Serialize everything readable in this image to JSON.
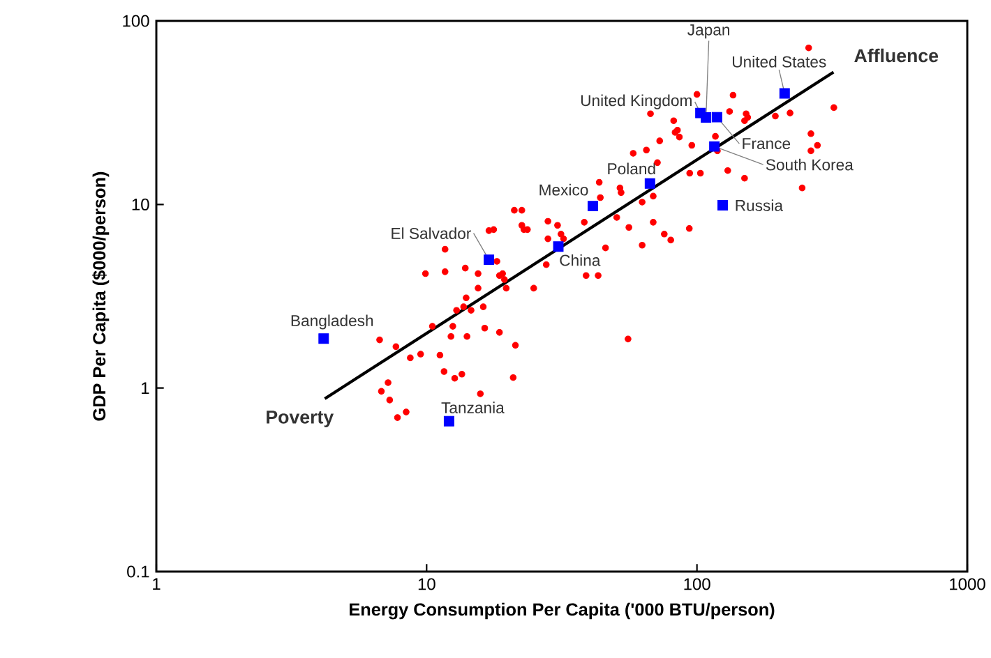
{
  "chart_data": {
    "type": "scatter",
    "xlabel": "Energy Consumption Per Capita ('000 BTU/person)",
    "ylabel": "GDP Per Capita ($000/person)",
    "log": "xy",
    "xlim": [
      1,
      1000
    ],
    "ylim": [
      0.1,
      100
    ],
    "xticks": [
      1,
      10,
      100,
      1000
    ],
    "yticks": [
      0.1,
      1,
      10,
      100
    ],
    "series": [
      {
        "color": "#ff0000",
        "marker": "circle",
        "x": [
          21.1,
          22.5,
          17.0,
          17.7,
          22.5,
          22.9,
          23.6,
          28.1,
          30.5,
          38.3,
          31.4,
          32.1,
          28.1,
          11.7,
          9.9,
          11.7,
          13.9,
          15.5,
          18.2,
          18.6,
          19.1,
          19.4,
          15.5,
          19.7,
          24.9,
          27.7,
          38.9,
          14.0,
          259,
          100,
          136,
          321,
          67.3,
          132,
          152,
          150,
          154,
          195,
          221,
          82.0,
          84.7,
          83.0,
          86.1,
          72.8,
          95.7,
          117,
          119,
          264,
          279,
          264,
          58.1,
          65.0,
          71.4,
          51.9,
          52.4,
          43.5,
          43.9,
          94.0,
          103,
          130,
          150,
          62.7,
          68.9,
          245,
          50.5,
          56.0,
          68.9,
          75.7,
          80.0,
          93.7,
          62.7,
          45.9,
          43.1,
          12.9,
          13.7,
          14.6,
          16.2,
          10.5,
          12.5,
          16.4,
          18.6,
          6.7,
          7.7,
          12.3,
          14.1,
          21.3,
          8.7,
          9.5,
          11.2,
          11.6,
          12.7,
          13.5,
          20.9,
          7.2,
          6.8,
          7.3,
          15.8,
          7.8,
          8.4,
          55.6
        ],
        "values": [
          9.3,
          9.3,
          7.2,
          7.3,
          7.7,
          7.3,
          7.3,
          8.1,
          7.7,
          8.0,
          6.9,
          6.5,
          6.5,
          5.7,
          4.2,
          4.3,
          4.5,
          4.2,
          4.9,
          4.1,
          4.2,
          3.9,
          3.5,
          3.5,
          3.5,
          4.7,
          4.1,
          3.1,
          71.3,
          39.8,
          39.4,
          33.7,
          31.2,
          32.1,
          31.2,
          28.6,
          29.8,
          30.3,
          31.5,
          28.6,
          25.4,
          24.7,
          23.3,
          22.2,
          21.0,
          23.5,
          19.6,
          24.3,
          21.0,
          19.6,
          19.0,
          19.8,
          16.9,
          12.3,
          11.6,
          13.2,
          10.9,
          14.8,
          14.8,
          15.3,
          13.9,
          10.3,
          11.1,
          12.3,
          8.5,
          7.5,
          8.0,
          6.9,
          6.4,
          7.4,
          6.0,
          5.8,
          4.1,
          2.65,
          2.77,
          2.65,
          2.77,
          2.17,
          2.17,
          2.12,
          2.01,
          1.83,
          1.68,
          1.91,
          1.91,
          1.71,
          1.46,
          1.53,
          1.51,
          1.23,
          1.13,
          1.19,
          1.14,
          1.07,
          0.96,
          0.86,
          0.93,
          0.69,
          0.74,
          1.85
        ]
      },
      {
        "type": "line",
        "color": "#000000",
        "marker": "none",
        "line_style": "solid",
        "x": [
          4.2,
          320
        ],
        "values": [
          0.875,
          52.6
        ]
      },
      {
        "color": "#0000ff",
        "marker": "square",
        "x": [
          211,
          103,
          108,
          118.6,
          116,
          67,
          41.2,
          124.5,
          30.7,
          17.0,
          4.16,
          12.1
        ],
        "values": [
          40.3,
          31.5,
          29.8,
          29.9,
          20.7,
          13.0,
          9.8,
          9.9,
          5.9,
          5.0,
          1.86,
          0.66
        ]
      }
    ],
    "annotations": [
      {
        "text": "United States",
        "x": 211,
        "y": 40.3
      },
      {
        "text": "Japan",
        "x": 108,
        "y": 29.8
      },
      {
        "text": "United Kingdom",
        "x": 103,
        "y": 31.5
      },
      {
        "text": "France",
        "x": 118.6,
        "y": 29.9
      },
      {
        "text": "South Korea",
        "x": 116,
        "y": 20.7
      },
      {
        "text": "Poland",
        "x": 67,
        "y": 13.0
      },
      {
        "text": "Mexico",
        "x": 41.2,
        "y": 9.8
      },
      {
        "text": "Russia",
        "x": 124.5,
        "y": 9.9
      },
      {
        "text": "China",
        "x": 30.7,
        "y": 5.9
      },
      {
        "text": "El Salvador",
        "x": 17.0,
        "y": 5.0
      },
      {
        "text": "Bangladesh",
        "x": 4.16,
        "y": 1.86
      },
      {
        "text": "Tanzania",
        "x": 12.1,
        "y": 0.66
      },
      {
        "text": "Poverty",
        "x": 4.2,
        "y": 0.875
      },
      {
        "text": "Affluence",
        "x": 320,
        "y": 52.6
      }
    ]
  }
}
